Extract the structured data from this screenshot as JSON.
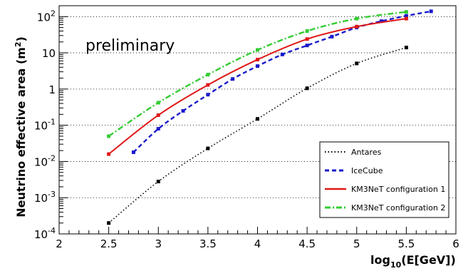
{
  "chart_data": {
    "type": "line",
    "x_label_base": "log",
    "x_label_sub": "10",
    "x_label_rest": "(E[GeV])",
    "y_label_main": "Neutrino effective area (m",
    "y_label_sup": "2",
    "y_label_end": ")",
    "annotation": "preliminary",
    "xlim": [
      2,
      6
    ],
    "ylim": [
      0.0001,
      200
    ],
    "y_scale": "log",
    "grid": "horizontal dotted",
    "legend_placement": "bottom-right",
    "x_ticks": [
      "2",
      "2.5",
      "3",
      "3.5",
      "4",
      "4.5",
      "5",
      "5.5",
      "6"
    ],
    "y_ticks": [
      {
        "base": "10",
        "exp": "2"
      },
      {
        "text": "10"
      },
      {
        "text": "1"
      },
      {
        "base": "10",
        "exp": "-1"
      },
      {
        "base": "10",
        "exp": "-2"
      },
      {
        "base": "10",
        "exp": "-3"
      },
      {
        "base": "10",
        "exp": "-4"
      }
    ],
    "series": [
      {
        "name": "Antares",
        "color": "#000000",
        "style": "dotted",
        "x": [
          2.5,
          3.0,
          3.5,
          4.0,
          4.5,
          5.0,
          5.5
        ],
        "y": [
          0.0002,
          0.0028,
          0.023,
          0.15,
          1.05,
          5.1,
          14
        ]
      },
      {
        "name": "IceCube",
        "color": "#1a1acc",
        "style": "dashed",
        "x": [
          2.75,
          3.0,
          3.25,
          3.5,
          3.75,
          4.0,
          4.25,
          4.5,
          4.75,
          5.0,
          5.25,
          5.5,
          5.75
        ],
        "y": [
          0.018,
          0.08,
          0.25,
          0.7,
          1.9,
          4.3,
          9,
          16,
          28,
          50,
          75,
          105,
          140
        ]
      },
      {
        "name": "KM3NeT configuration 1",
        "color": "#e01818",
        "style": "solid",
        "x": [
          2.5,
          3.0,
          3.5,
          4.0,
          4.5,
          5.0,
          5.5
        ],
        "y": [
          0.016,
          0.19,
          1.3,
          6.5,
          24,
          53,
          88
        ]
      },
      {
        "name": "KM3NeT configuration 2",
        "color": "#33cc33",
        "style": "dashdot",
        "x": [
          2.5,
          3.0,
          3.5,
          4.0,
          4.5,
          5.0,
          5.5
        ],
        "y": [
          0.05,
          0.42,
          2.5,
          12,
          40,
          88,
          135
        ]
      }
    ]
  }
}
